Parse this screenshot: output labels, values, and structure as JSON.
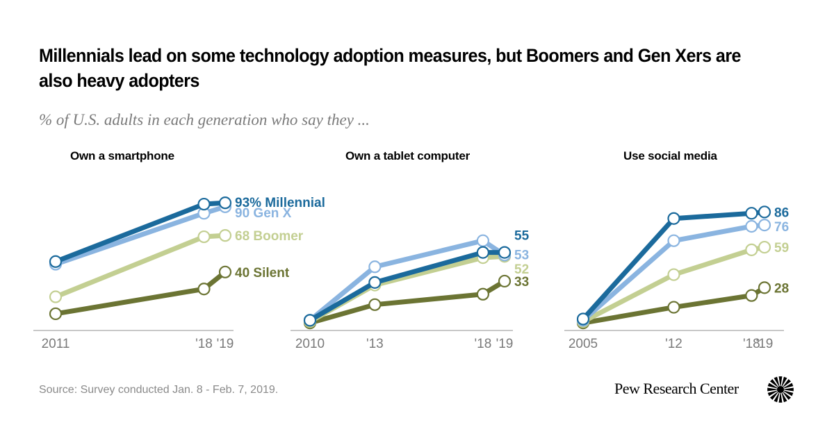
{
  "header": {
    "title": "Millennials lead on some technology adoption measures, but Boomers and Gen Xers are also heavy adopters",
    "subtitle": "% of U.S. adults in each generation who say they ..."
  },
  "footer": {
    "source": "Source: Survey conducted Jan. 8 - Feb. 7, 2019.",
    "brand": "Pew Research Center",
    "brand_icon": "pew-sunburst-icon"
  },
  "colors": {
    "Millennial": "#1b6a9c",
    "Gen X": "#8ab4e0",
    "Boomer": "#c3cf92",
    "Silent": "#6b7433",
    "axis": "#c8c8c8",
    "tick_text": "#7a7a7a"
  },
  "chart_data": [
    {
      "type": "line",
      "title": "Own a smartphone",
      "x": [
        2011,
        2018,
        2019
      ],
      "tick_labels": [
        "2011",
        "'18",
        "'19"
      ],
      "ylim": [
        0,
        100
      ],
      "grid": false,
      "series": [
        {
          "name": "Millennial",
          "values": [
            48,
            92,
            93
          ],
          "end_label": "93% Millennial"
        },
        {
          "name": "Gen X",
          "values": [
            46,
            85,
            90
          ],
          "end_label": "90 Gen X"
        },
        {
          "name": "Boomer",
          "values": [
            21,
            67,
            68
          ],
          "end_label": "68 Boomer"
        },
        {
          "name": "Silent",
          "values": [
            8,
            27,
            40
          ],
          "end_label": "40 Silent"
        }
      ]
    },
    {
      "type": "line",
      "title": "Own a tablet computer",
      "x": [
        2010,
        2013,
        2018,
        2019
      ],
      "tick_labels": [
        "2010",
        "'13",
        "'18",
        "'19"
      ],
      "ylim": [
        0,
        100
      ],
      "grid": false,
      "series": [
        {
          "name": "Millennial",
          "values": [
            3,
            32,
            55,
            55
          ],
          "end_label": "55"
        },
        {
          "name": "Gen X",
          "values": [
            3,
            44,
            64,
            53
          ],
          "end_label": "53"
        },
        {
          "name": "Boomer",
          "values": [
            2,
            30,
            51,
            52
          ],
          "end_label": "52"
        },
        {
          "name": "Silent",
          "values": [
            1,
            15,
            23,
            33
          ],
          "end_label": "33"
        }
      ]
    },
    {
      "type": "line",
      "title": "Use social media",
      "x": [
        2005,
        2012,
        2018,
        2019
      ],
      "tick_labels": [
        "2005",
        "'12",
        "'18",
        "'19"
      ],
      "ylim": [
        0,
        100
      ],
      "grid": false,
      "series": [
        {
          "name": "Millennial",
          "values": [
            4,
            81,
            85,
            86
          ],
          "end_label": "86"
        },
        {
          "name": "Gen X",
          "values": [
            3,
            64,
            75,
            76
          ],
          "end_label": "76"
        },
        {
          "name": "Boomer",
          "values": [
            2,
            38,
            57,
            59
          ],
          "end_label": "59"
        },
        {
          "name": "Silent",
          "values": [
            1,
            13,
            22,
            28
          ],
          "end_label": "28"
        }
      ]
    }
  ]
}
